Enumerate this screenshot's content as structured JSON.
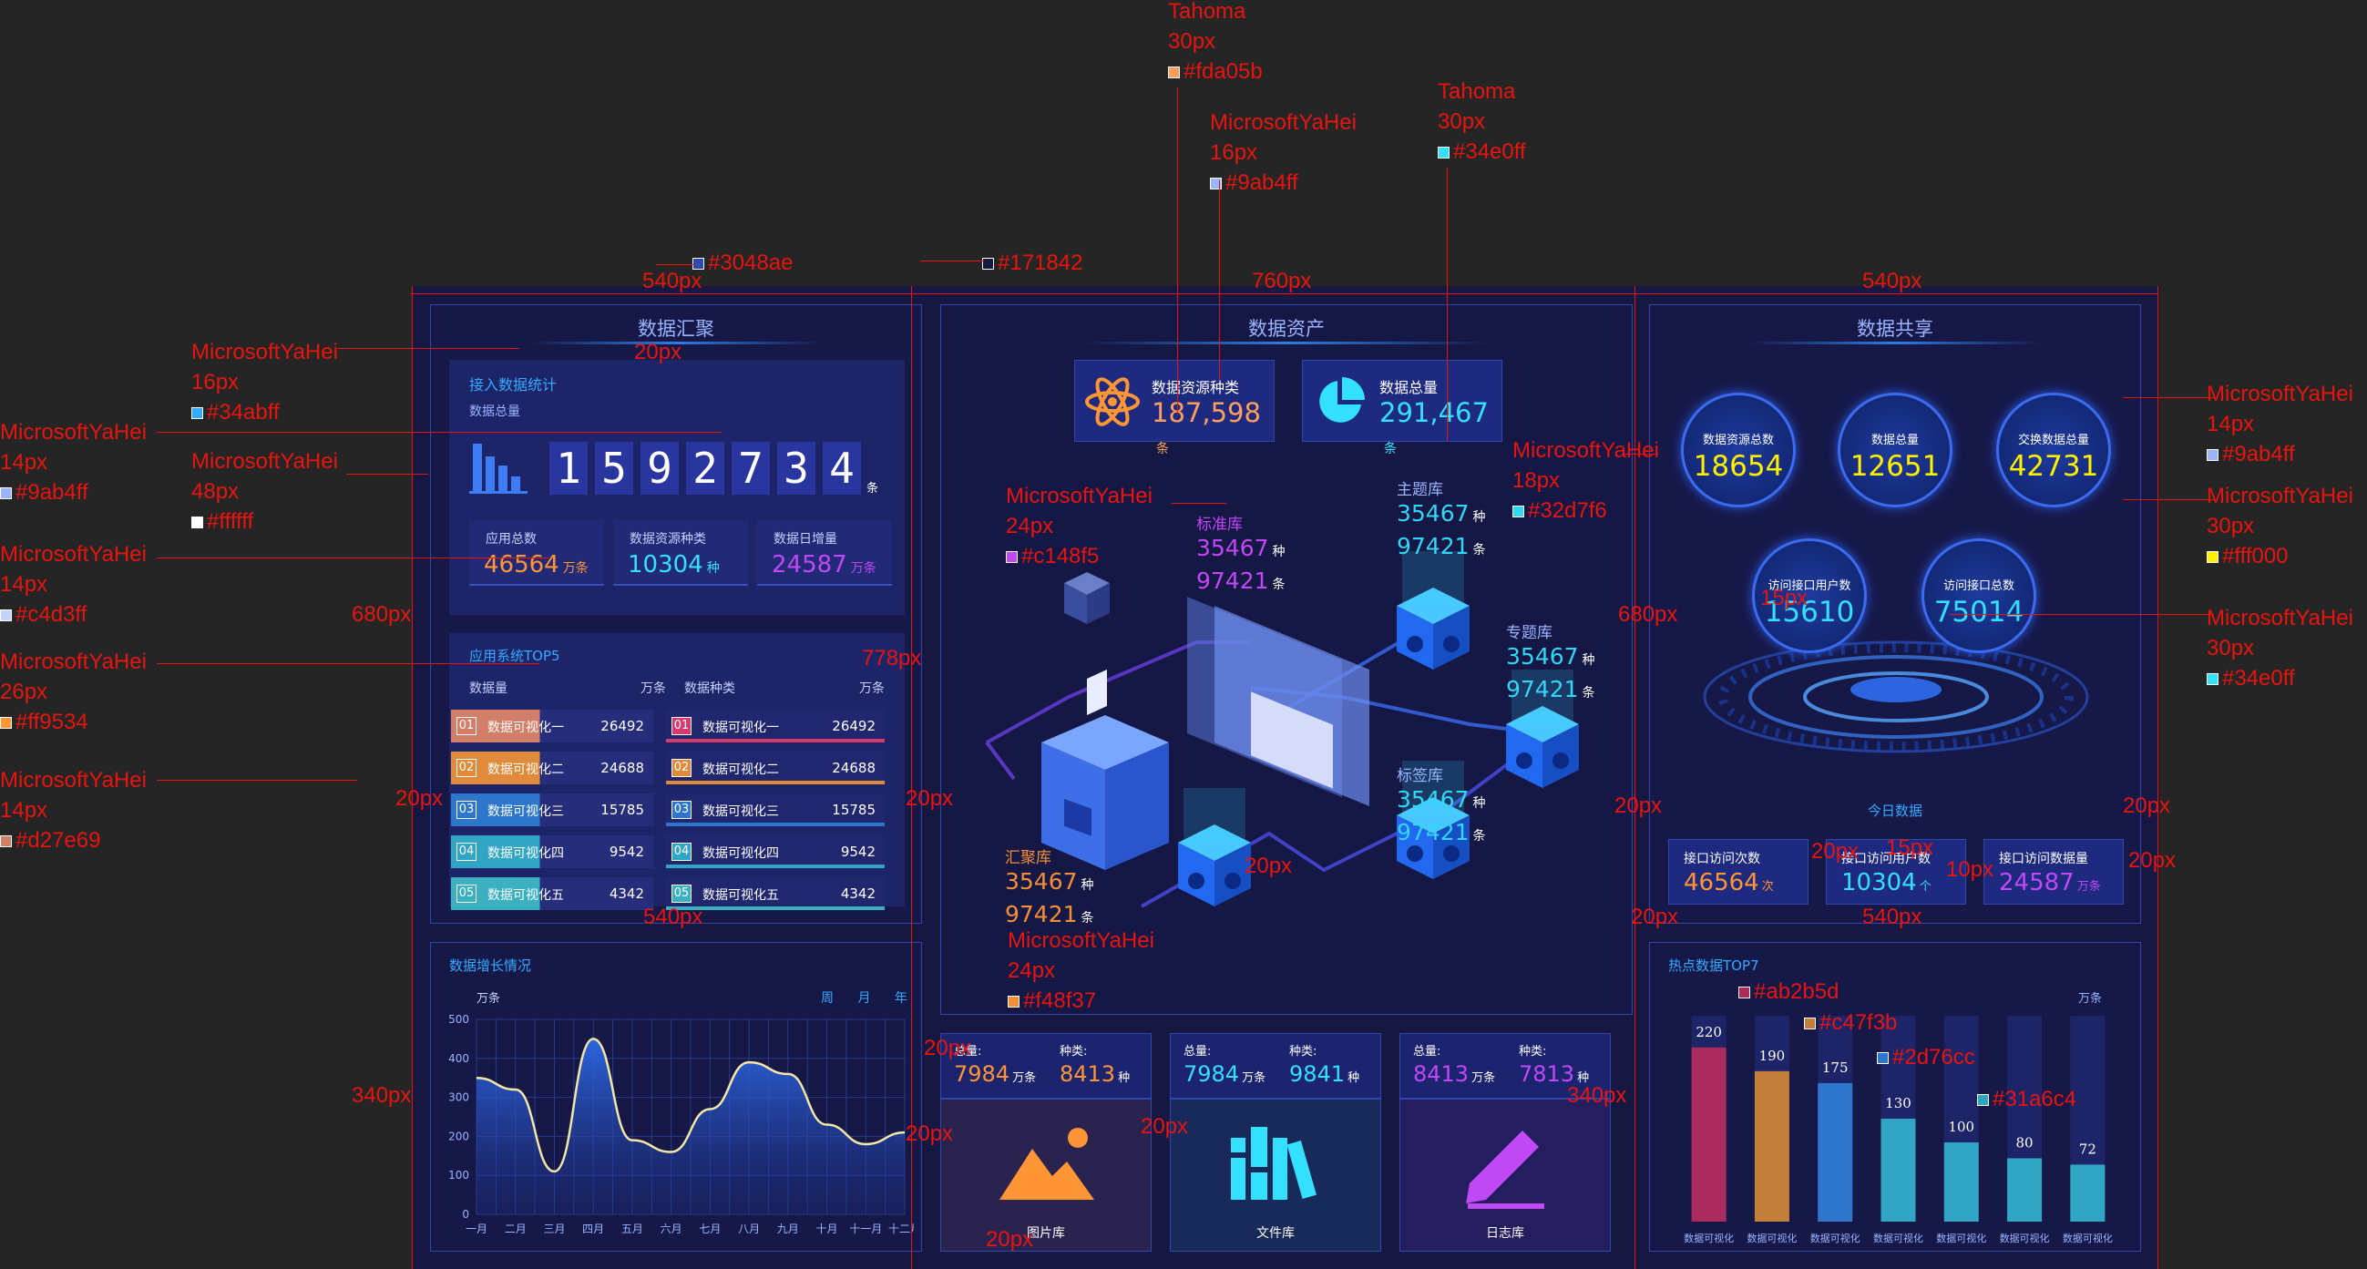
{
  "panels": {
    "data_aggregation": {
      "title": "数据汇聚",
      "access_title": "接入数据统计",
      "total_label": "数据总量",
      "total_digits": [
        "1",
        "5",
        "9",
        "2",
        "7",
        "3",
        "4"
      ],
      "total_unit": "条",
      "stats": [
        {
          "label": "应用总数",
          "value": "46564",
          "unit": "万条",
          "color": "#ff9534"
        },
        {
          "label": "数据资源种类",
          "value": "10304",
          "unit": "种",
          "color": "#34e0ff"
        },
        {
          "label": "数据日增量",
          "value": "24587",
          "unit": "万条",
          "color": "#c148f5"
        }
      ],
      "top5_title": "应用系统TOP5",
      "left_head": {
        "label": "数据量",
        "unit": "万条"
      },
      "right_head": {
        "label": "数据种类",
        "unit": "万条"
      },
      "left_rows": [
        {
          "rank": "01",
          "name": "数据可视化一",
          "value": "26492",
          "color": "#d27e69"
        },
        {
          "rank": "02",
          "name": "数据可视化二",
          "value": "24688",
          "color": "#e08a3c"
        },
        {
          "rank": "03",
          "name": "数据可视化三",
          "value": "15785",
          "color": "#2d76cc"
        },
        {
          "rank": "04",
          "name": "数据可视化四",
          "value": "9542",
          "color": "#31a6c4"
        },
        {
          "rank": "05",
          "name": "数据可视化五",
          "value": "4342",
          "color": "#3ab0c0"
        }
      ],
      "right_rows": [
        {
          "rank": "01",
          "name": "数据可视化一",
          "value": "26492",
          "color": "#d63a6e"
        },
        {
          "rank": "02",
          "name": "数据可视化二",
          "value": "24688",
          "color": "#e08a3c"
        },
        {
          "rank": "03",
          "name": "数据可视化三",
          "value": "15785",
          "color": "#2d76cc"
        },
        {
          "rank": "04",
          "name": "数据可视化四",
          "value": "9542",
          "color": "#31a6c4"
        },
        {
          "rank": "05",
          "name": "数据可视化五",
          "value": "4342",
          "color": "#3ab0c0"
        }
      ]
    },
    "data_assets": {
      "title": "数据资产",
      "resource_kinds": {
        "label": "数据资源种类",
        "value": "187,598",
        "unit": "条"
      },
      "total": {
        "label": "数据总量",
        "value": "291,467",
        "unit": "条"
      },
      "libraries": [
        {
          "name": "标准库",
          "kinds": "35467",
          "kinds_unit": "种",
          "count": "97421",
          "count_unit": "条",
          "color": "#c148f5"
        },
        {
          "name": "主题库",
          "kinds": "35467",
          "kinds_unit": "种",
          "count": "97421",
          "count_unit": "条",
          "color": "#32d7f6"
        },
        {
          "name": "专题库",
          "kinds": "35467",
          "kinds_unit": "种",
          "count": "97421",
          "count_unit": "条",
          "color": "#32d7f6"
        },
        {
          "name": "标签库",
          "kinds": "35467",
          "kinds_unit": "种",
          "count": "97421",
          "count_unit": "条",
          "color": "#32d7f6"
        },
        {
          "name": "汇聚库",
          "kinds": "35467",
          "kinds_unit": "种",
          "count": "97421",
          "count_unit": "条",
          "color": "#f48f37"
        }
      ]
    },
    "data_sharing": {
      "title": "数据共享",
      "circles": [
        {
          "label": "数据资源总数",
          "value": "18654",
          "color": "#fff000"
        },
        {
          "label": "数据总量",
          "value": "12651",
          "color": "#fff000"
        },
        {
          "label": "交换数据总量",
          "value": "42731",
          "color": "#fff000"
        },
        {
          "label": "访问接口用户数",
          "value": "15610",
          "color": "#34e0ff"
        },
        {
          "label": "访问接口总数",
          "value": "75014",
          "color": "#34e0ff"
        }
      ],
      "today_label": "今日数据",
      "today": [
        {
          "label": "接口访问次数",
          "value": "46564",
          "unit": "次",
          "color": "#ff9534"
        },
        {
          "label": "接口访问用户数",
          "value": "10304",
          "unit": "个",
          "color": "#34e0ff"
        },
        {
          "label": "接口访问数据量",
          "value": "24587",
          "unit": "万条",
          "color": "#c148f5"
        }
      ]
    },
    "growth": {
      "title": "数据增长情况",
      "unit": "万条",
      "periods": [
        "周",
        "月",
        "年"
      ]
    },
    "storage": [
      {
        "total_label": "总量:",
        "total": "7984",
        "total_unit": "万条",
        "kind_label": "种类:",
        "kinds": "8413",
        "kinds_unit": "种",
        "caption": "图片库",
        "color": "#ff9534"
      },
      {
        "total_label": "总量:",
        "total": "7984",
        "total_unit": "万条",
        "kind_label": "种类:",
        "kinds": "9841",
        "kinds_unit": "种",
        "caption": "文件库",
        "color": "#34e0ff"
      },
      {
        "total_label": "总量:",
        "total": "8413",
        "total_unit": "万条",
        "kind_label": "种类:",
        "kinds": "7813",
        "kinds_unit": "种",
        "caption": "日志库",
        "color": "#c148f5"
      }
    ],
    "hot": {
      "title": "热点数据TOP7",
      "unit": "万条"
    }
  },
  "chart_data": [
    {
      "type": "area",
      "title": "数据增长情况",
      "ylabel": "万条",
      "categories": [
        "一月",
        "二月",
        "三月",
        "四月",
        "五月",
        "六月",
        "七月",
        "八月",
        "九月",
        "十月",
        "十一月",
        "十二月"
      ],
      "values": [
        350,
        320,
        110,
        450,
        190,
        160,
        270,
        390,
        360,
        230,
        180,
        210
      ],
      "ylim": [
        0,
        500
      ],
      "yticks": [
        "0",
        "100",
        "200",
        "300",
        "400",
        "500"
      ],
      "grid": true
    },
    {
      "type": "bar",
      "title": "热点数据TOP7",
      "ylabel": "万条",
      "categories": [
        "数据可视化",
        "数据可视化",
        "数据可视化",
        "数据可视化",
        "数据可视化",
        "数据可视化",
        "数据可视化"
      ],
      "values": [
        220,
        190,
        175,
        130,
        100,
        80,
        72
      ],
      "colors": [
        "#ab2b5d",
        "#c47f3b",
        "#2d76cc",
        "#31a6c4",
        "#31a6c4",
        "#31a6c4",
        "#31a6c4"
      ],
      "ylim": [
        0,
        260
      ]
    }
  ],
  "annotations": {
    "items": [
      {
        "lines": [
          "Tahoma",
          "30px"
        ],
        "swatch": "#fda05b",
        "swatch_text": "#fda05b"
      },
      {
        "lines": [
          "MicrosoftYaHei",
          "16px"
        ],
        "swatch": "#9ab4ff",
        "swatch_text": "#9ab4ff"
      },
      {
        "lines": [
          "Tahoma",
          "30px"
        ],
        "swatch": "#34e0ff",
        "swatch_text": "#34e0ff"
      },
      {
        "lines": [],
        "swatch": "#3048ae",
        "swatch_text": "#3048ae"
      },
      {
        "lines": [],
        "swatch": "#171842",
        "swatch_text": "#171842"
      },
      {
        "lines": [
          "MicrosoftYaHei",
          "16px"
        ],
        "swatch": "#34abff",
        "swatch_text": "#34abff"
      },
      {
        "lines": [
          "MicrosoftYaHei",
          "14px"
        ],
        "swatch": "#9ab4ff",
        "swatch_text": "#9ab4ff"
      },
      {
        "lines": [
          "MicrosoftYaHei",
          "48px"
        ],
        "swatch": "#ffffff",
        "swatch_text": "#ffffff"
      },
      {
        "lines": [
          "MicrosoftYaHei",
          "14px"
        ],
        "swatch": "#c4d3ff",
        "swatch_text": "#c4d3ff"
      },
      {
        "lines": [
          "MicrosoftYaHei",
          "26px"
        ],
        "swatch": "#ff9534",
        "swatch_text": "#ff9534"
      },
      {
        "lines": [
          "MicrosoftYaHei",
          "14px"
        ],
        "swatch": "#d27e69",
        "swatch_text": "#d27e69"
      },
      {
        "lines": [
          "MicrosoftYaHei",
          "24px"
        ],
        "swatch": "#c148f5",
        "swatch_text": "#c148f5"
      },
      {
        "lines": [
          "MicrosoftYaHei",
          "18px"
        ],
        "swatch": "#32d7f6",
        "swatch_text": "#32d7f6"
      },
      {
        "lines": [
          "MicrosoftYaHei",
          "24px"
        ],
        "swatch": "#f48f37",
        "swatch_text": "#f48f37"
      },
      {
        "lines": [
          "MicrosoftYaHei",
          "14px"
        ],
        "swatch": "#9ab4ff",
        "swatch_text": "#9ab4ff"
      },
      {
        "lines": [
          "MicrosoftYaHei",
          "30px"
        ],
        "swatch": "#fff000",
        "swatch_text": "#fff000"
      },
      {
        "lines": [
          "MicrosoftYaHei",
          "30px"
        ],
        "swatch": "#34e0ff",
        "swatch_text": "#34e0ff"
      },
      {
        "lines": [],
        "swatch": "#ab2b5d",
        "swatch_text": "#ab2b5d"
      },
      {
        "lines": [],
        "swatch": "#c47f3b",
        "swatch_text": "#c47f3b"
      },
      {
        "lines": [],
        "swatch": "#2d76cc",
        "swatch_text": "#2d76cc"
      },
      {
        "lines": [],
        "swatch": "#31a6c4",
        "swatch_text": "#31a6c4"
      }
    ],
    "dims": [
      "540px",
      "760px",
      "540px",
      "20px",
      "680px",
      "680px",
      "778px",
      "20px",
      "20px",
      "20px",
      "20px",
      "540px",
      "20px",
      "15px",
      "20px",
      "15px",
      "20px",
      "10px",
      "20px",
      "540px",
      "340px",
      "20px",
      "20px",
      "20px",
      "340px",
      "20px"
    ]
  }
}
